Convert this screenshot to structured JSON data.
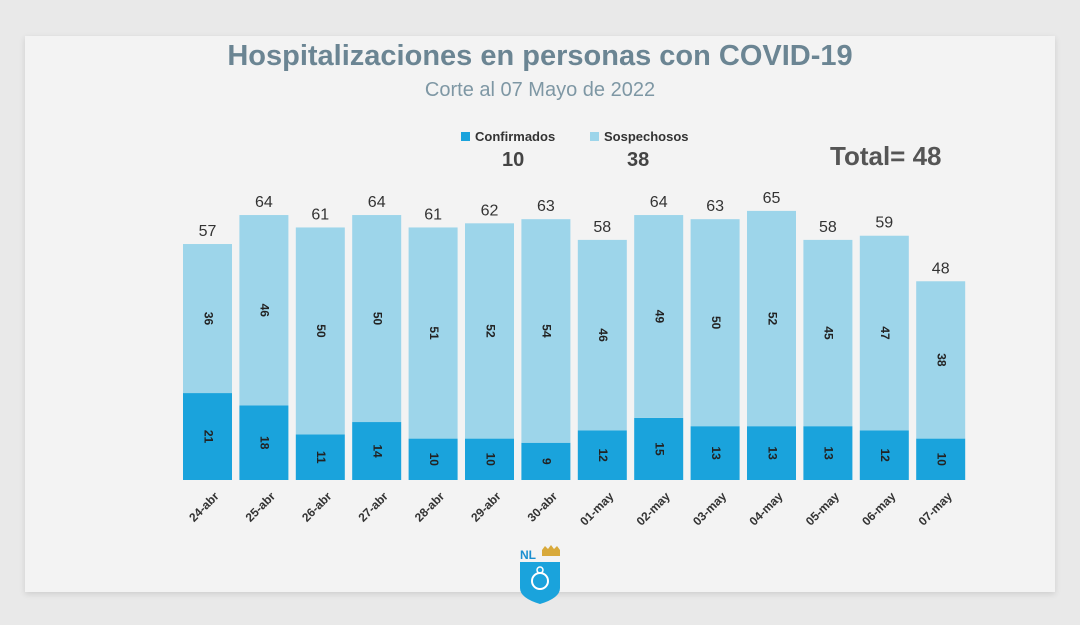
{
  "chart_data": {
    "type": "bar",
    "stacked": true,
    "title": "Hospitalizaciones en personas con COVID-19",
    "subtitle": "Corte al 07 Mayo de 2022",
    "categories": [
      "24-abr",
      "25-abr",
      "26-abr",
      "27-abr",
      "28-abr",
      "29-abr",
      "30-abr",
      "01-may",
      "02-may",
      "03-may",
      "04-may",
      "05-may",
      "06-may",
      "07-may"
    ],
    "series": [
      {
        "name": "Confirmados",
        "color": "#1aa3dc",
        "values": [
          21,
          18,
          11,
          14,
          10,
          10,
          9,
          12,
          15,
          13,
          13,
          13,
          12,
          10
        ]
      },
      {
        "name": "Sospechosos",
        "color": "#9dd5ea",
        "values": [
          36,
          46,
          50,
          50,
          51,
          52,
          54,
          46,
          49,
          50,
          52,
          45,
          47,
          38
        ]
      }
    ],
    "totals": [
      57,
      64,
      61,
      64,
      61,
      62,
      63,
      58,
      64,
      63,
      65,
      58,
      59,
      48
    ],
    "legend_position": "top",
    "grid": false
  },
  "legend": {
    "confirmados_value": "10",
    "sospechosos_value": "38"
  },
  "total_label": "Total= 48",
  "logo": {
    "text": "NL",
    "icon": "nuevo-leon-shield-logo"
  }
}
